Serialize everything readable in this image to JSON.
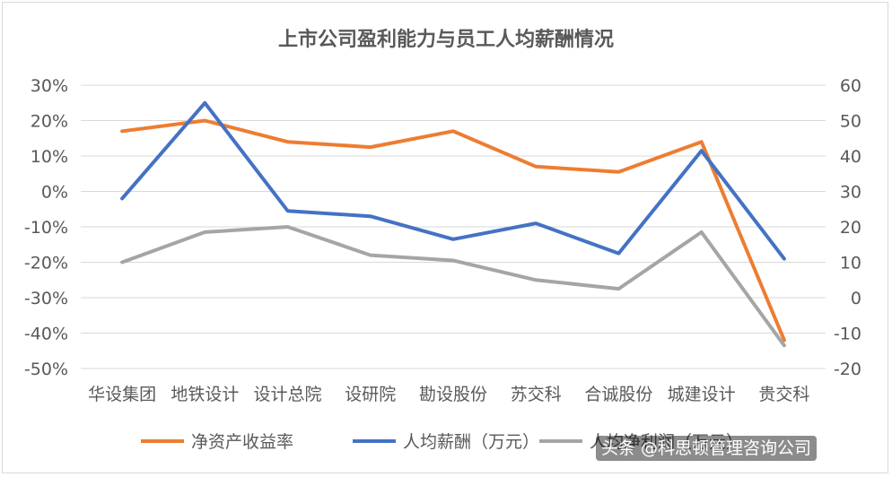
{
  "chart_data": {
    "type": "line",
    "title": "上市公司盈利能力与员工人均薪酬情况",
    "categories": [
      "华设集团",
      "地铁设计",
      "设计总院",
      "设研院",
      "勘设股份",
      "苏交科",
      "合诚股份",
      "城建设计",
      "贵交科"
    ],
    "y_left": {
      "ticks": [
        "30%",
        "20%",
        "10%",
        "0%",
        "-10%",
        "-20%",
        "-30%",
        "-40%",
        "-50%"
      ],
      "range": [
        -50,
        30
      ],
      "unit": "%"
    },
    "y_right": {
      "ticks": [
        "60",
        "50",
        "40",
        "30",
        "20",
        "10",
        "0",
        "-10",
        "-20"
      ],
      "range": [
        -20,
        60
      ]
    },
    "grid": true,
    "legend_position": "bottom",
    "series": [
      {
        "name": "净资产收益率",
        "axis": "left",
        "color": "#ED7D31",
        "values": [
          17,
          20,
          14,
          12.5,
          17,
          7,
          5.5,
          14,
          -42
        ]
      },
      {
        "name": "人均薪酬（万元）",
        "axis": "right",
        "color": "#4472C4",
        "values": [
          28,
          55,
          24.5,
          23,
          16.5,
          21,
          12.5,
          41.5,
          11
        ]
      },
      {
        "name": "人均净利润（万元）",
        "axis": "right",
        "color": "#A5A5A5",
        "values": [
          10,
          18.5,
          20,
          12,
          10.5,
          5,
          2.5,
          18.5,
          -13.5
        ]
      }
    ]
  },
  "watermark": "头条 @科思顿管理咨询公司"
}
